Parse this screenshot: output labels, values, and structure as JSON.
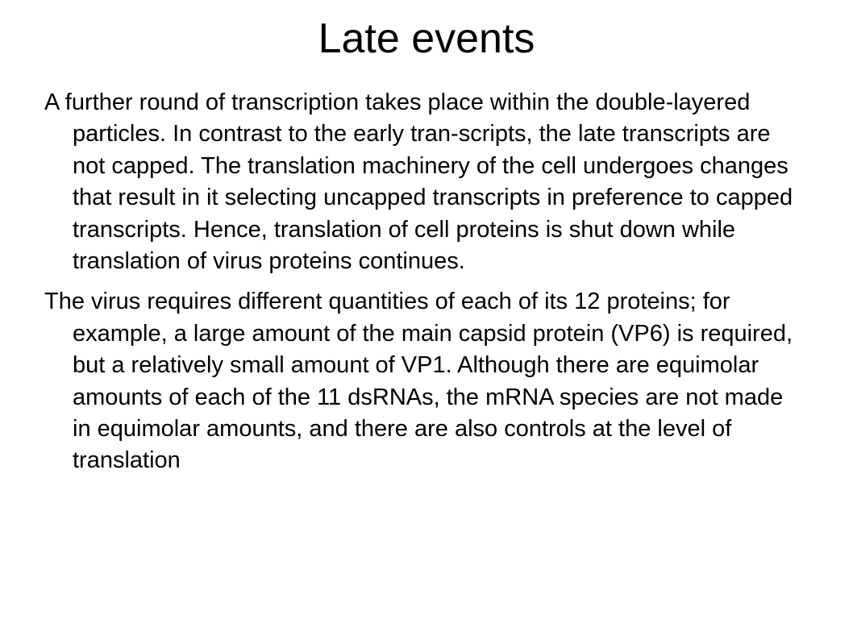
{
  "slide": {
    "title": "Late events",
    "paragraphs": [
      "A further round of transcription takes place within the double-layered particles. In contrast to the early tran-scripts, the late transcripts are not capped. The translation machinery of the cell undergoes changes that result in it selecting uncapped transcripts in preference to capped transcripts. Hence, translation of cell proteins is shut down while translation of virus proteins continues.",
      "The virus requires different quantities of each of its 12 proteins; for example, a large amount of the main capsid protein (VP6) is required, but a relatively small amount of VP1. Although there are equimolar amounts of each of the 11 dsRNAs, the mRNA species are not made in equimolar amounts, and there are also controls at the level of translation"
    ]
  }
}
